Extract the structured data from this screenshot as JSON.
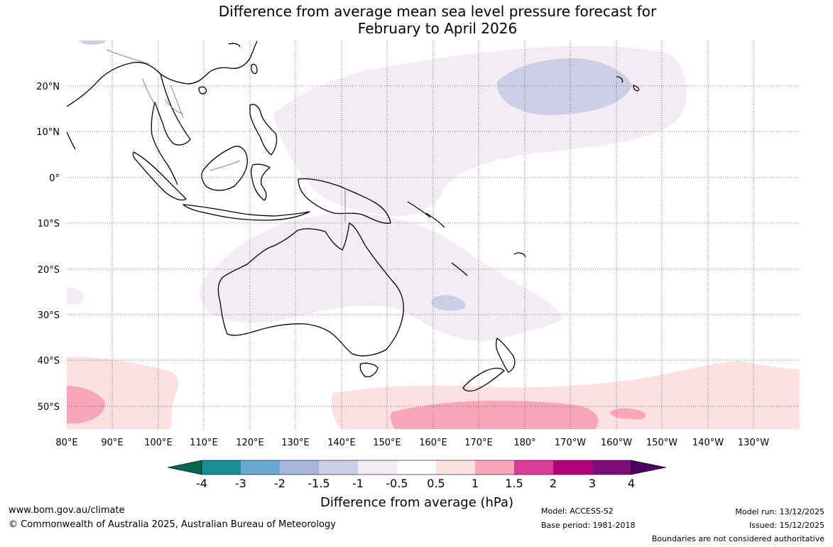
{
  "title_line1": "Difference from average mean sea level pressure forecast for",
  "title_line2": "February to April 2026",
  "lon_labels": [
    "80°E",
    "90°E",
    "100°E",
    "110°E",
    "120°E",
    "130°E",
    "140°E",
    "150°E",
    "160°E",
    "170°E",
    "180°",
    "170°W",
    "160°W",
    "150°W",
    "140°W",
    "130°W"
  ],
  "lat_labels": [
    "20°N",
    "10°N",
    "0°",
    "10°S",
    "20°S",
    "30°S",
    "40°S",
    "50°S"
  ],
  "colorbar": {
    "title": "Difference from average (hPa)",
    "tick_labels": [
      "-4",
      "-3",
      "-2",
      "-1.5",
      "-1",
      "-0.5",
      "0.5",
      "1",
      "1.5",
      "2",
      "3",
      "4"
    ],
    "colors": [
      "#00664e",
      "#1a8f98",
      "#6aa9d2",
      "#a7b7dc",
      "#cdcee5",
      "#f3ecf5",
      "#ffffff",
      "#fde0e0",
      "#f9a5ba",
      "#dc3c9a",
      "#b0007c",
      "#7c0d7b",
      "#4b0060"
    ]
  },
  "footer": {
    "website": "www.bom.gov.au/climate",
    "copyright": "© Commonwealth of Australia 2025, Australian Bureau of Meteorology",
    "model": "Model: ACCESS-S2",
    "base_period": "Base period: 1981-2018",
    "model_run": "Model run: 13/12/2025",
    "issued": "Issued: 15/12/2025",
    "boundaries": "Boundaries are not considered authoritative"
  }
}
